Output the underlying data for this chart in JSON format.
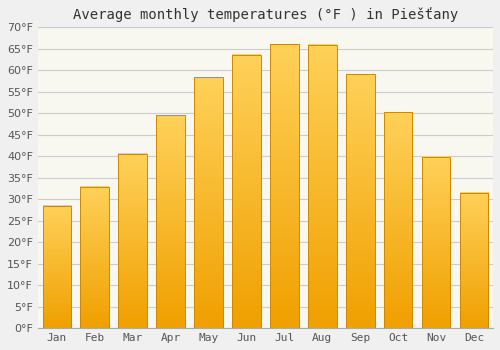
{
  "title": "Average monthly temperatures (°F ) in Piešťany",
  "months": [
    "Jan",
    "Feb",
    "Mar",
    "Apr",
    "May",
    "Jun",
    "Jul",
    "Aug",
    "Sep",
    "Oct",
    "Nov",
    "Dec"
  ],
  "values": [
    28.4,
    32.9,
    40.6,
    49.5,
    58.3,
    63.5,
    66.0,
    65.8,
    59.0,
    50.2,
    39.9,
    31.5
  ],
  "bar_color_top": "#FFB732",
  "bar_color_bottom": "#F0A000",
  "bar_edge_color": "#CC8800",
  "ylim": [
    0,
    70
  ],
  "ytick_step": 5,
  "background_color": "#f0f0f0",
  "plot_bg_color": "#f8f8f0",
  "grid_color": "#cccccc",
  "title_fontsize": 10,
  "tick_fontsize": 8,
  "font_family": "monospace"
}
